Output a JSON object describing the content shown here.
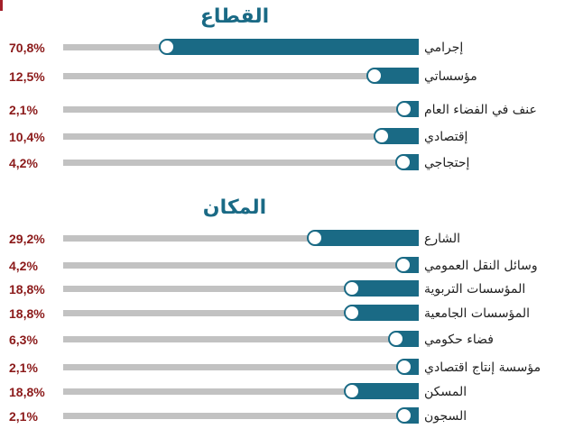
{
  "chart_data": [
    {
      "type": "bar",
      "title": "القطاع",
      "categories": [
        "إجرامي",
        "مؤسساتي",
        "عنف في الفضاء العام",
        "إقتصادي",
        "إحتجاجي"
      ],
      "values": [
        70.8,
        12.5,
        2.1,
        10.4,
        4.2
      ],
      "value_labels": [
        "70,8%",
        "12,5%",
        "2,1%",
        "10,4%",
        "4,2%"
      ],
      "xlim": [
        0,
        100
      ],
      "colors": {
        "fill": "#1a6a85",
        "track": "#c2c2c2",
        "value_text": "#8b1a1a"
      }
    },
    {
      "type": "bar",
      "title": "المكان",
      "categories": [
        "الشارع",
        "وسائل النقل العمومي",
        "المؤسسات التربوية",
        "المؤسسات الجامعية",
        "فضاء حكومي",
        "مؤسسة إنتاج اقتصادي",
        "المسكن",
        "السجون"
      ],
      "values": [
        29.2,
        4.2,
        18.8,
        18.8,
        6.3,
        2.1,
        18.8,
        2.1
      ],
      "value_labels": [
        "29,2%",
        "4,2%",
        "18,8%",
        "18,8%",
        "6,3%",
        "2,1%",
        "18,8%",
        "2,1%"
      ],
      "xlim": [
        0,
        100
      ],
      "colors": {
        "fill": "#1a6a85",
        "track": "#c2c2c2",
        "value_text": "#8b1a1a"
      }
    }
  ]
}
